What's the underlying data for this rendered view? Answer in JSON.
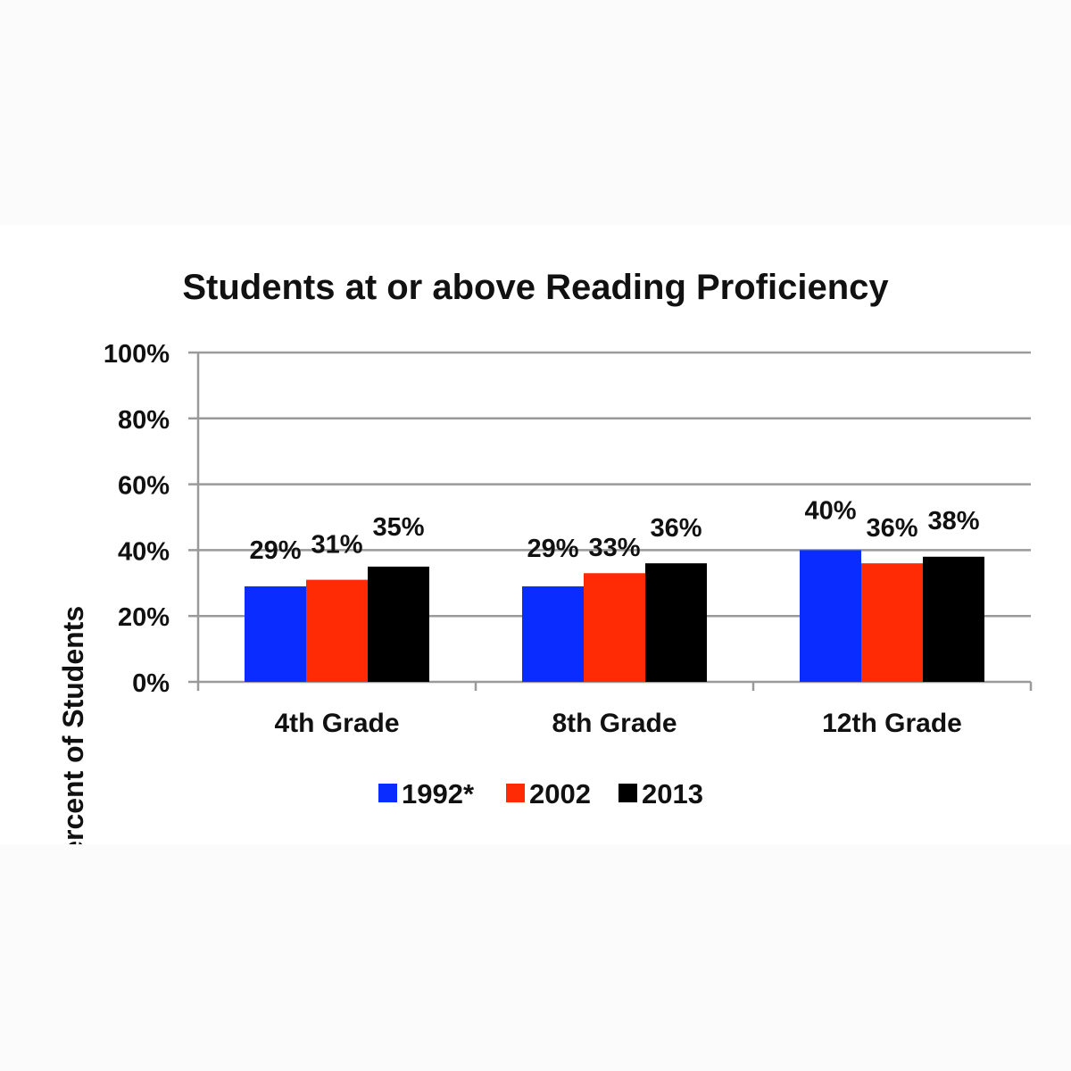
{
  "chart_data": {
    "type": "bar",
    "title": "Students at or above Reading Proficiency",
    "xlabel": "",
    "ylabel": "Percent of Students",
    "categories": [
      "4th Grade",
      "8th Grade",
      "12th Grade"
    ],
    "series": [
      {
        "name": "1992*",
        "color": "#0a2cff",
        "values": [
          29,
          29,
          40
        ],
        "labels": [
          "29%",
          "29%",
          "40%"
        ]
      },
      {
        "name": "2002",
        "color": "#ff2b05",
        "values": [
          31,
          33,
          36
        ],
        "labels": [
          "31%",
          "33%",
          "36%"
        ]
      },
      {
        "name": "2013",
        "color": "#000000",
        "values": [
          35,
          36,
          38
        ],
        "labels": [
          "35%",
          "36%",
          "38%"
        ]
      }
    ],
    "ylim": [
      0,
      100
    ],
    "yticks": [
      0,
      20,
      40,
      60,
      80,
      100
    ],
    "ytick_labels": [
      "0%",
      "20%",
      "40%",
      "60%",
      "80%",
      "100%"
    ],
    "grid": true,
    "legend": "bottom-center"
  }
}
